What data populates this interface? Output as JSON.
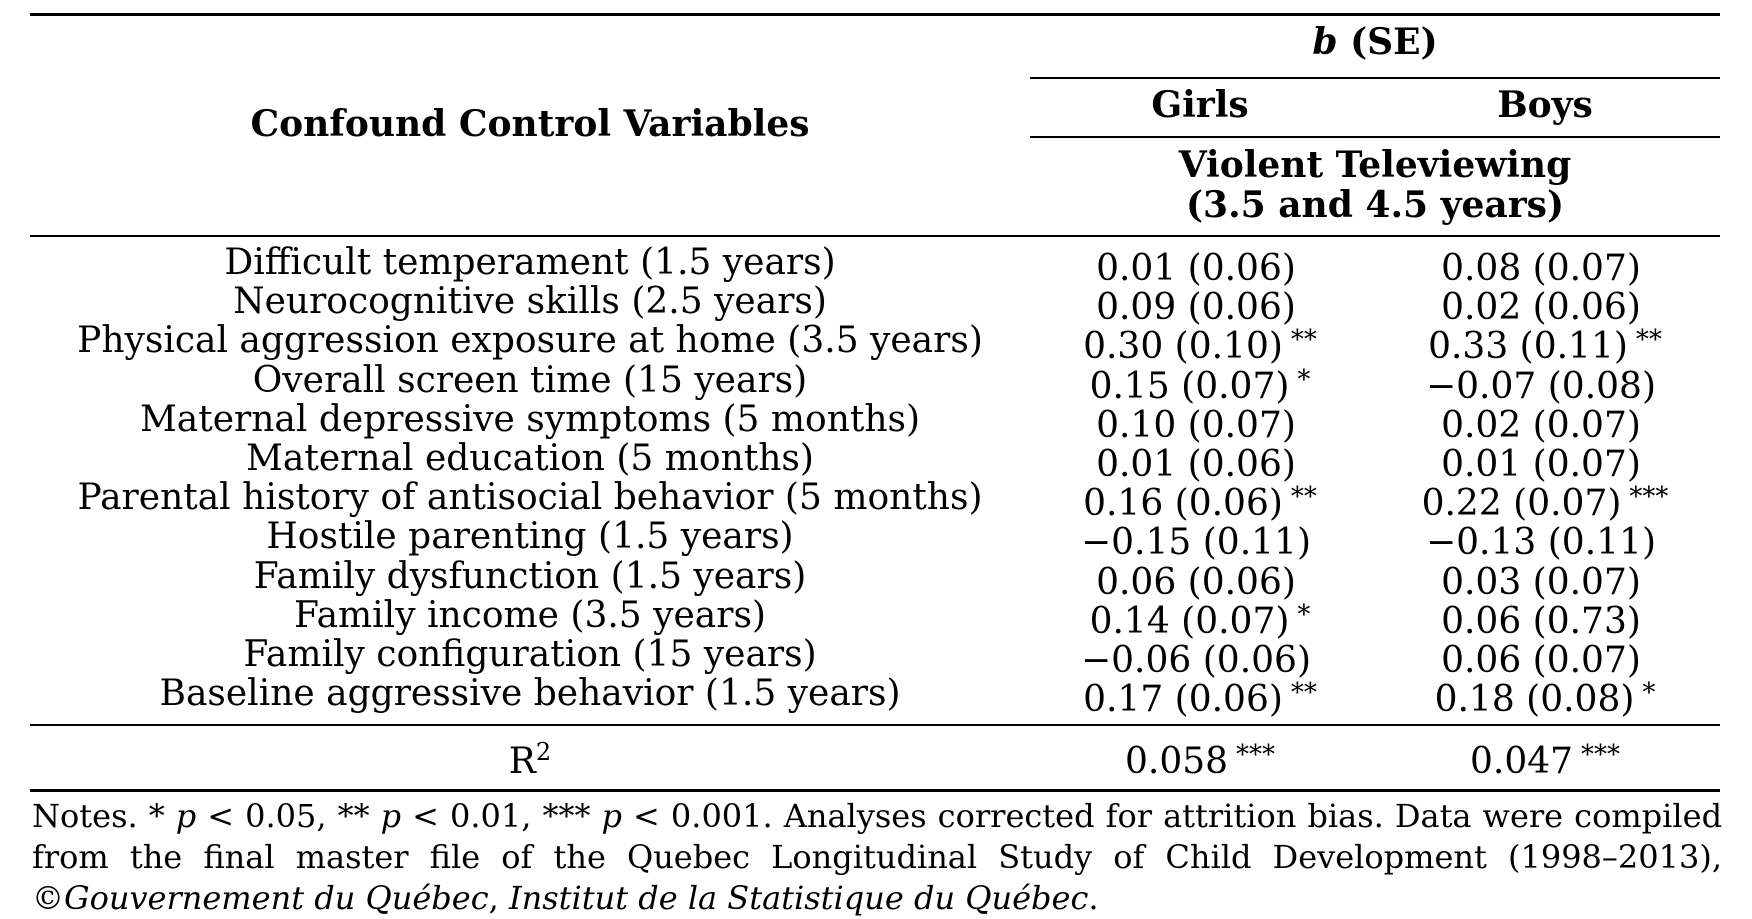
{
  "table": {
    "header": {
      "row_label_header": "Confound Control Variables",
      "stat_header_b": "b",
      "stat_header_rest": " (SE)",
      "girls": "Girls",
      "boys": "Boys",
      "subheader_line1": "Violent Televiewing",
      "subheader_line2": "(3.5 and 4.5 years)"
    },
    "rows": [
      {
        "label": "Difficult temperament (1.5 years)",
        "girls": "0.01 (0.06)",
        "girls_sig": "",
        "boys": "0.08 (0.07)",
        "boys_sig": ""
      },
      {
        "label": "Neurocognitive skills (2.5 years)",
        "girls": "0.09 (0.06)",
        "girls_sig": "",
        "boys": "0.02 (0.06)",
        "boys_sig": ""
      },
      {
        "label": "Physical aggression exposure at home (3.5 years)",
        "girls": "0.30 (0.10)",
        "girls_sig": "**",
        "boys": "0.33 (0.11)",
        "boys_sig": "**"
      },
      {
        "label": "Overall screen time (15 years)",
        "girls": "0.15 (0.07)",
        "girls_sig": "*",
        "boys": "−0.07 (0.08)",
        "boys_sig": ""
      },
      {
        "label": "Maternal depressive symptoms (5 months)",
        "girls": "0.10 (0.07)",
        "girls_sig": "",
        "boys": "0.02 (0.07)",
        "boys_sig": ""
      },
      {
        "label": "Maternal education (5 months)",
        "girls": "0.01 (0.06)",
        "girls_sig": "",
        "boys": "0.01 (0.07)",
        "boys_sig": ""
      },
      {
        "label": "Parental history of antisocial behavior (5 months)",
        "girls": "0.16 (0.06)",
        "girls_sig": "**",
        "boys": "0.22 (0.07)",
        "boys_sig": "***"
      },
      {
        "label": "Hostile parenting (1.5 years)",
        "girls": "−0.15 (0.11)",
        "girls_sig": "",
        "boys": "−0.13 (0.11)",
        "boys_sig": ""
      },
      {
        "label": "Family dysfunction (1.5 years)",
        "girls": "0.06 (0.06)",
        "girls_sig": "",
        "boys": "0.03 (0.07)",
        "boys_sig": ""
      },
      {
        "label": "Family income (3.5 years)",
        "girls": "0.14 (0.07)",
        "girls_sig": "*",
        "boys": "0.06 (0.73)",
        "boys_sig": ""
      },
      {
        "label": "Family configuration (15 years)",
        "girls": "−0.06 (0.06)",
        "girls_sig": "",
        "boys": "0.06 (0.07)",
        "boys_sig": ""
      },
      {
        "label": "Baseline aggressive behavior (1.5 years)",
        "girls": "0.17 (0.06)",
        "girls_sig": "**",
        "boys": "0.18 (0.08)",
        "boys_sig": "*"
      }
    ],
    "r2": {
      "label_base": "R",
      "label_sup": "2",
      "girls": "0.058",
      "girls_sig": "***",
      "boys": "0.047",
      "boys_sig": "***"
    }
  },
  "notes": {
    "prefix": "Notes. ",
    "s1_star": "* ",
    "s1_p": "p",
    "s1_val": " < 0.05, ",
    "s2_star": "** ",
    "s2_p": "p",
    "s2_val": " < 0.01, ",
    "s3_star": "*** ",
    "s3_p": "p",
    "s3_val": " < 0.001. ",
    "body": "Analyses corrected for attrition bias. Data were compiled from the final master file of the Quebec Longitudinal Study of Child Development (1998–2013), ©",
    "italic1": "Gouvernement du Québec",
    "comma": ", ",
    "italic2": "Institut de la Statistique du Québec",
    "end": "."
  }
}
